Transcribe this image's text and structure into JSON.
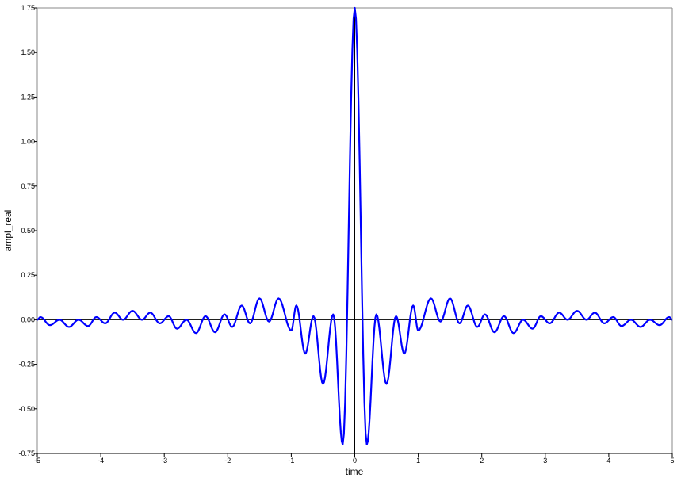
{
  "chart_data": {
    "type": "line",
    "title": "",
    "xlabel": "time",
    "ylabel": "ampl_real",
    "xlim": [
      -5,
      5
    ],
    "ylim": [
      -0.75,
      1.75
    ],
    "x_ticks": [
      "-5",
      "-4",
      "-3",
      "-2",
      "-1",
      "0",
      "1",
      "2",
      "3",
      "4",
      "5"
    ],
    "y_ticks": [
      "-0.75",
      "-0.50",
      "-0.25",
      "0.00",
      "0.25",
      "0.50",
      "0.75",
      "1.00",
      "1.25",
      "1.50",
      "1.75"
    ],
    "grid": false,
    "zero_lines": true,
    "symmetric_about_zero": true,
    "series": [
      {
        "color": "#0000ff",
        "x": [
          0,
          0.19,
          0.34,
          0.5,
          0.65,
          0.78,
          0.92,
          1.0,
          1.2,
          1.35,
          1.5,
          1.65,
          1.78,
          1.93,
          2.05,
          2.2,
          2.35,
          2.5,
          2.65,
          2.8,
          2.93,
          3.07,
          3.22,
          3.35,
          3.5,
          3.65,
          3.78,
          3.93,
          4.07,
          4.2,
          4.35,
          4.5,
          4.65,
          4.8,
          4.95,
          5.0
        ],
        "y": [
          1.75,
          -0.7,
          0.03,
          -0.36,
          0.02,
          -0.19,
          0.08,
          -0.06,
          0.12,
          -0.01,
          0.12,
          -0.02,
          0.08,
          -0.04,
          0.03,
          -0.07,
          0.02,
          -0.075,
          0.0,
          -0.05,
          0.02,
          -0.02,
          0.04,
          0.0,
          0.05,
          0.0,
          0.04,
          -0.02,
          0.015,
          -0.035,
          0.0,
          -0.04,
          0.0,
          -0.03,
          0.015,
          0.0
        ]
      }
    ]
  }
}
